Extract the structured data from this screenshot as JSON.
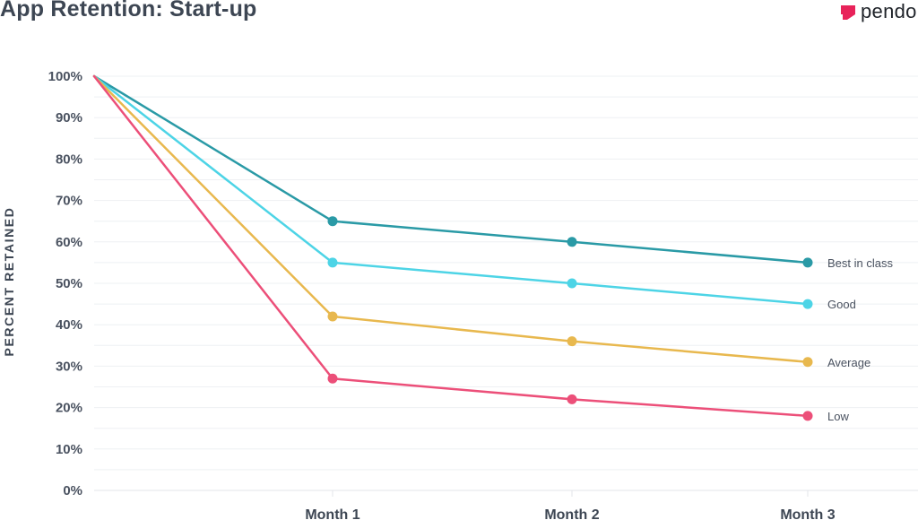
{
  "header": {
    "title": "App Retention: Start-up",
    "brand_name": "pendo",
    "brand_icon": "pendo-logo-icon",
    "brand_color": "#e8235a"
  },
  "chart_data": {
    "type": "line",
    "title": "App Retention: Start-up",
    "xlabel": "",
    "ylabel": "PERCENT RETAINED",
    "x": [
      "",
      "Month 1",
      "Month 2",
      "Month 3"
    ],
    "xtick_labels": [
      "Month 1",
      "Month 2",
      "Month 3"
    ],
    "ylim": [
      0,
      100
    ],
    "yticks": [
      0,
      10,
      20,
      30,
      40,
      50,
      60,
      70,
      80,
      90,
      100
    ],
    "ytick_labels": [
      "0%",
      "10%",
      "20%",
      "30%",
      "40%",
      "50%",
      "60%",
      "70%",
      "80%",
      "90%",
      "100%"
    ],
    "grid": true,
    "legend": "end-of-line labels",
    "series": [
      {
        "name": "Best in class",
        "color": "#2a9aa6",
        "values": [
          100,
          65,
          60,
          55
        ]
      },
      {
        "name": "Good",
        "color": "#4dd4e6",
        "values": [
          100,
          55,
          50,
          45
        ]
      },
      {
        "name": "Average",
        "color": "#e8b84e",
        "values": [
          100,
          42,
          36,
          31
        ]
      },
      {
        "name": "Low",
        "color": "#ec4f79",
        "values": [
          100,
          27,
          22,
          18
        ]
      }
    ]
  }
}
